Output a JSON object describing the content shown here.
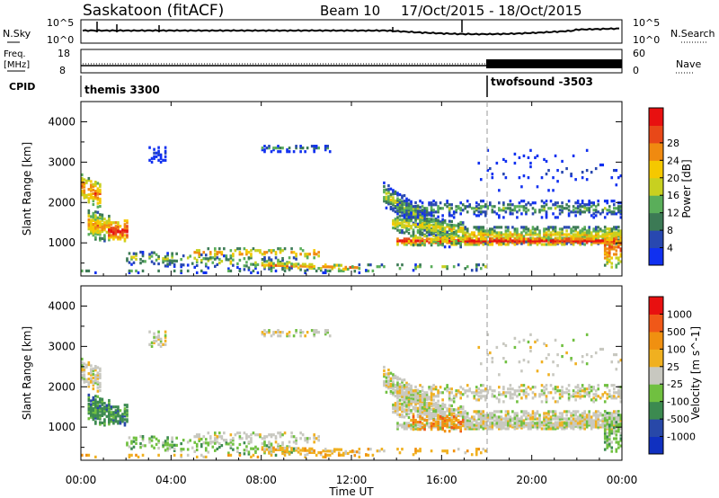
{
  "header": {
    "station": "Saskatoon (fitACF)",
    "beam": "Beam 10",
    "date_range": "17/Oct/2015 - 18/Oct/2015"
  },
  "top_panels": {
    "nsky_label": "N.Sky",
    "nsky_ticks": [
      "10^5",
      "10^0"
    ],
    "nsearch_label": "N.Search",
    "nsearch_ticks": [
      "10^5",
      "10^0"
    ],
    "freq_label_1": "Freq.",
    "freq_label_2": "[MHz]",
    "freq_ticks": [
      "18",
      "8"
    ],
    "nave_label": "Nave",
    "nave_ticks": [
      "60",
      "0"
    ],
    "cpid_label": "CPID",
    "cpid_1": "themis 3300",
    "cpid_2": "twofsound -3503"
  },
  "x_axis": {
    "label": "Time UT",
    "ticks": [
      "00:00",
      "04:00",
      "08:00",
      "12:00",
      "16:00",
      "20:00",
      "00:00"
    ]
  },
  "colors": {
    "power": [
      "#1030f0",
      "#2848b0",
      "#3c7a55",
      "#5aae5a",
      "#c8d020",
      "#f5c800",
      "#f08a10",
      "#e84818",
      "#e81010"
    ],
    "velocity": [
      "#e81010",
      "#f05818",
      "#f09010",
      "#f0b020",
      "#c8c8c0",
      "#70c040",
      "#3c8a50",
      "#2848a8",
      "#1030c0"
    ]
  },
  "chart_data": [
    {
      "type": "heatmap",
      "panel": "power",
      "ylabel": "Slant Range [km]",
      "ylim": [
        180,
        4500
      ],
      "yticks": [
        1000,
        2000,
        3000,
        4000
      ],
      "xlim_hours": [
        0,
        24
      ],
      "colorbar": {
        "label": "Power [dB]",
        "ticks": [
          "4",
          "8",
          "12",
          "16",
          "20",
          "24",
          "28"
        ],
        "range": [
          0,
          32
        ]
      },
      "grid": false
    },
    {
      "type": "heatmap",
      "panel": "velocity",
      "ylabel": "Slant Range [km]",
      "ylim": [
        180,
        4500
      ],
      "yticks": [
        1000,
        2000,
        3000,
        4000
      ],
      "xlim_hours": [
        0,
        24
      ],
      "colorbar": {
        "label": "Velocity [m s^-1]",
        "ticks": [
          "1000",
          "500",
          "100",
          "25",
          "-25",
          "-100",
          "-500",
          "-1000"
        ]
      },
      "grid": false
    }
  ]
}
